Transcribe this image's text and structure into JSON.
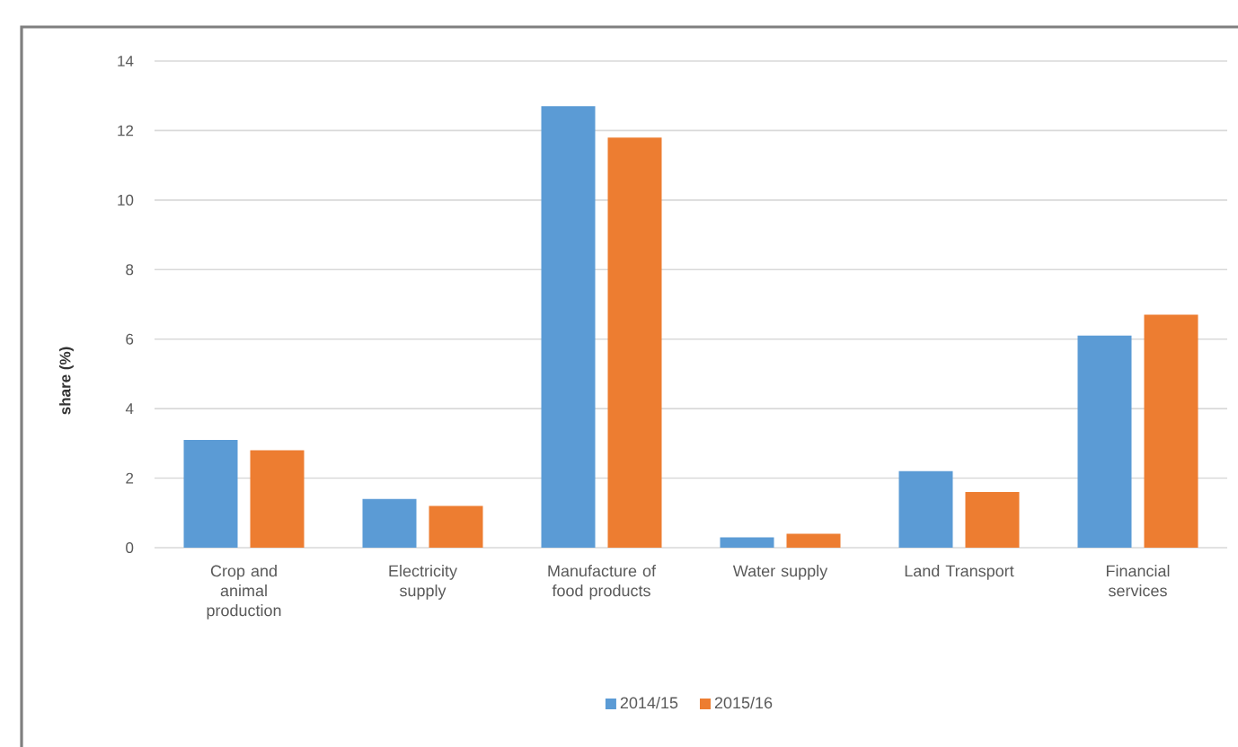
{
  "chart_data": {
    "type": "bar",
    "categories": [
      "Crop and animal production",
      "Electricity supply",
      "Manufacture of food products",
      "Water supply",
      "Land Transport",
      "Financial services"
    ],
    "series": [
      {
        "name": "2014/15",
        "color": "#5b9bd5",
        "values": [
          3.1,
          1.4,
          12.7,
          0.3,
          2.2,
          6.1
        ]
      },
      {
        "name": "2015/16",
        "color": "#ed7d31",
        "values": [
          2.8,
          1.2,
          11.8,
          0.4,
          1.6,
          6.7
        ]
      }
    ],
    "ylabel": "share (%)",
    "ylim": [
      0,
      14
    ],
    "yticks": [
      0,
      2,
      4,
      6,
      8,
      10,
      12,
      14
    ],
    "grid": "y",
    "legend": "bottom"
  }
}
